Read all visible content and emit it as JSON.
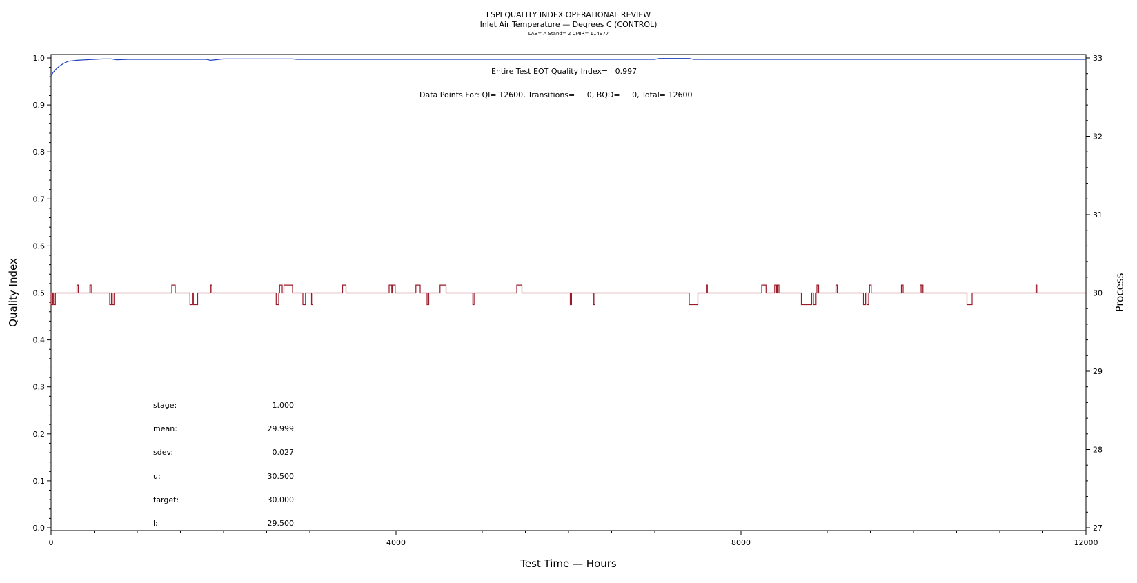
{
  "chart_data": {
    "type": "line",
    "title": "LSPI QUALITY INDEX OPERATIONAL REVIEW",
    "subtitle": "Inlet Air Temperature — Degrees C (CONTROL)",
    "subtitle2": "LAB= A Stand= 2 CMIR= 114977",
    "xlabel": "Test Time — Hours",
    "ylabel_left": "Quality Index",
    "ylabel_right": "Process",
    "xlim": [
      0,
      12000
    ],
    "ylim_left": [
      0,
      1
    ],
    "ylim_right": [
      27,
      33
    ],
    "x_ticks": [
      0,
      4000,
      8000,
      12000
    ],
    "y_ticks_left": [
      "0.0",
      "0.1",
      "0.2",
      "0.3",
      "0.4",
      "0.5",
      "0.6",
      "0.7",
      "0.8",
      "0.9",
      "1.0"
    ],
    "y_ticks_right": [
      "27",
      "28",
      "29",
      "30",
      "31",
      "32",
      "33"
    ],
    "grid": false,
    "annotations": {
      "quality_index": "Entire Test EOT Quality Index=   0.997",
      "data_points": "Data Points For: QI= 12600, Transitions=     0, BQD=     0, Total= 12600"
    },
    "stats": [
      {
        "label": "stage:",
        "value": "1.000"
      },
      {
        "label": "mean:",
        "value": "29.999"
      },
      {
        "label": "sdev:",
        "value": "0.027"
      },
      {
        "label": "u:",
        "value": "30.500"
      },
      {
        "label": "target:",
        "value": "30.000"
      },
      {
        "label": "l:",
        "value": "29.500"
      }
    ],
    "series": [
      {
        "axis": "left",
        "color": "#1f3fbf",
        "points": [
          [
            0,
            0.962
          ],
          [
            20,
            0.968
          ],
          [
            50,
            0.975
          ],
          [
            100,
            0.983
          ],
          [
            150,
            0.989
          ],
          [
            200,
            0.993
          ],
          [
            300,
            0.995
          ],
          [
            400,
            0.996
          ],
          [
            600,
            0.998
          ],
          [
            700,
            0.998
          ],
          [
            760,
            0.996
          ],
          [
            900,
            0.997
          ],
          [
            1800,
            0.997
          ],
          [
            1850,
            0.995
          ],
          [
            2000,
            0.998
          ],
          [
            2800,
            0.998
          ],
          [
            2850,
            0.997
          ],
          [
            7000,
            0.997
          ],
          [
            7050,
            0.999
          ],
          [
            7400,
            0.999
          ],
          [
            7450,
            0.997
          ],
          [
            12000,
            0.997
          ]
        ]
      },
      {
        "axis": "right",
        "color": "#9b1b2a",
        "baseline": 30.0,
        "events": [
          [
            0,
            20,
            29.85
          ],
          [
            30,
            50,
            29.85
          ],
          [
            300,
            315,
            30.1
          ],
          [
            450,
            465,
            30.1
          ],
          [
            680,
            700,
            29.85
          ],
          [
            710,
            730,
            29.85
          ],
          [
            1400,
            1440,
            30.1
          ],
          [
            1610,
            1640,
            29.85
          ],
          [
            1650,
            1700,
            29.85
          ],
          [
            1850,
            1865,
            30.1
          ],
          [
            2610,
            2640,
            29.85
          ],
          [
            2650,
            2680,
            30.1
          ],
          [
            2700,
            2800,
            30.1
          ],
          [
            2920,
            2950,
            29.85
          ],
          [
            3020,
            3035,
            29.85
          ],
          [
            3380,
            3420,
            30.1
          ],
          [
            3920,
            3950,
            30.1
          ],
          [
            3960,
            3990,
            30.1
          ],
          [
            4230,
            4280,
            30.1
          ],
          [
            4360,
            4380,
            29.85
          ],
          [
            4510,
            4580,
            30.1
          ],
          [
            4890,
            4905,
            29.85
          ],
          [
            5400,
            5460,
            30.1
          ],
          [
            6020,
            6035,
            29.85
          ],
          [
            6290,
            6305,
            29.85
          ],
          [
            7400,
            7500,
            29.85
          ],
          [
            7600,
            7610,
            30.1
          ],
          [
            8240,
            8290,
            30.1
          ],
          [
            8390,
            8410,
            30.1
          ],
          [
            8420,
            8440,
            30.1
          ],
          [
            8700,
            8820,
            29.85
          ],
          [
            8840,
            8870,
            29.85
          ],
          [
            8880,
            8900,
            30.1
          ],
          [
            9100,
            9115,
            30.1
          ],
          [
            9420,
            9445,
            29.85
          ],
          [
            9460,
            9480,
            29.85
          ],
          [
            9490,
            9510,
            30.1
          ],
          [
            9860,
            9880,
            30.1
          ],
          [
            10080,
            10095,
            30.1
          ],
          [
            10100,
            10110,
            30.1
          ],
          [
            10620,
            10680,
            29.85
          ],
          [
            11420,
            11430,
            30.1
          ]
        ]
      }
    ]
  }
}
